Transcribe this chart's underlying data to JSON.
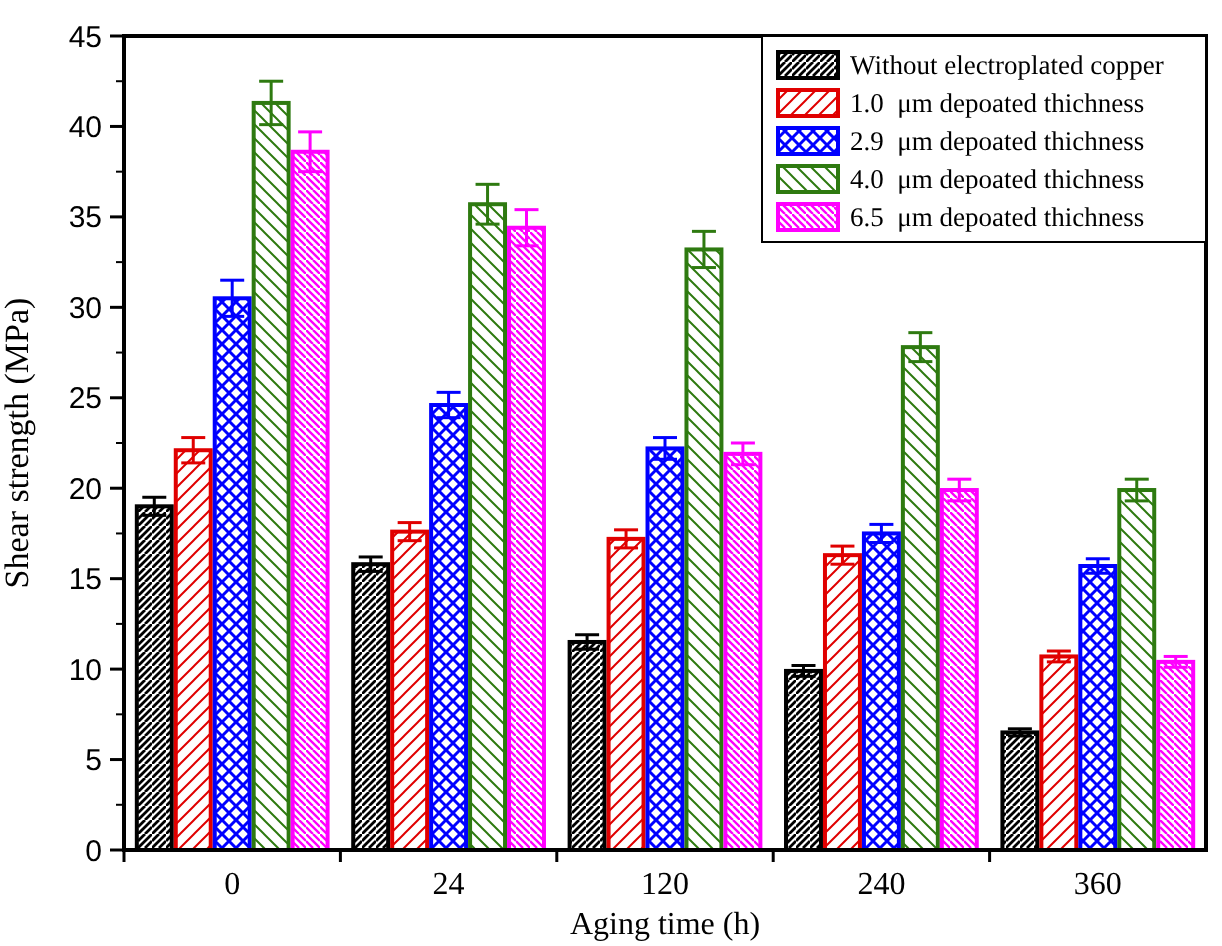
{
  "chart_data": {
    "type": "bar",
    "xlabel": "Aging time (h)",
    "ylabel": "Shear strength (MPa)",
    "categories": [
      "0",
      "24",
      "120",
      "240",
      "360"
    ],
    "ylim": [
      0,
      45
    ],
    "yticks": [
      0,
      5,
      10,
      15,
      20,
      25,
      30,
      35,
      40,
      45
    ],
    "grid": false,
    "legend": "top right",
    "series": [
      {
        "name": "Without electroplated copper",
        "color": "#000000",
        "values": [
          19.0,
          15.8,
          11.5,
          9.9,
          6.5
        ],
        "errors": [
          0.5,
          0.4,
          0.4,
          0.3,
          0.2
        ]
      },
      {
        "name": "1.0  μm depoated thichness",
        "color": "#e00000",
        "values": [
          22.1,
          17.6,
          17.2,
          16.3,
          10.7
        ],
        "errors": [
          0.7,
          0.5,
          0.5,
          0.5,
          0.3
        ]
      },
      {
        "name": "2.9  μm depoated thichness",
        "color": "#0000ff",
        "values": [
          30.5,
          24.6,
          22.2,
          17.5,
          15.7
        ],
        "errors": [
          1.0,
          0.7,
          0.6,
          0.5,
          0.4
        ]
      },
      {
        "name": "4.0  μm depoated thichness",
        "color": "#2e7a10",
        "values": [
          41.3,
          35.7,
          33.2,
          27.8,
          19.9
        ],
        "errors": [
          1.2,
          1.1,
          1.0,
          0.8,
          0.6
        ]
      },
      {
        "name": "6.5  μm depoated thichness",
        "color": "#ff00ff",
        "values": [
          38.6,
          34.4,
          21.9,
          19.9,
          10.4
        ],
        "errors": [
          1.1,
          1.0,
          0.6,
          0.6,
          0.3
        ]
      }
    ]
  }
}
